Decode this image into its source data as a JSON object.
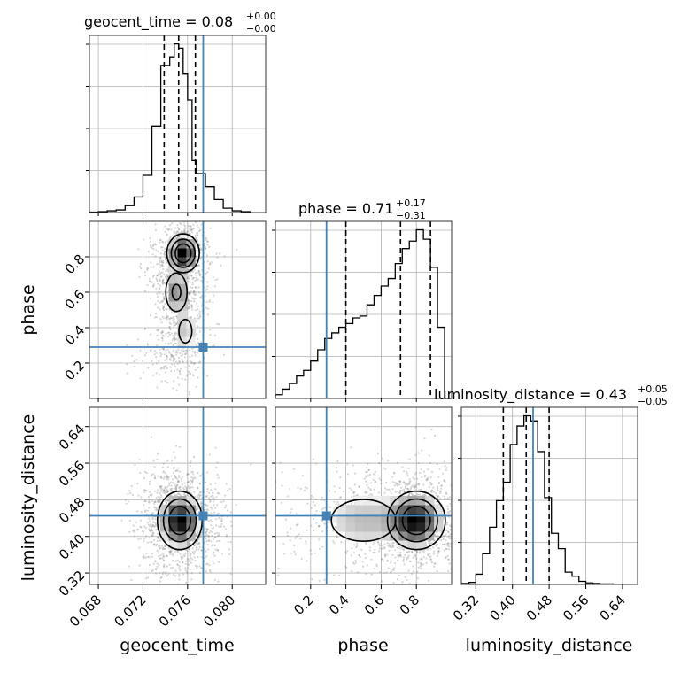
{
  "chart_data": {
    "type": "corner",
    "parameters": [
      "geocent_time",
      "phase",
      "luminosity_distance"
    ],
    "truth": {
      "geocent_time": 0.0774,
      "phase": 0.29,
      "luminosity_distance": 0.445
    },
    "truth_color": "#4682b4",
    "grid": true,
    "panels_1d": [
      {
        "parameter": "geocent_time",
        "title": {
          "main": "geocent_time = 0.08",
          "upper": "+0.00",
          "lower": "−0.00"
        },
        "xlim": [
          0.0672,
          0.083
        ],
        "bin_edges": [
          0.0672,
          0.068,
          0.0688,
          0.0696,
          0.0704,
          0.0712,
          0.072,
          0.0728,
          0.0736,
          0.0744,
          0.0748,
          0.0752,
          0.0756,
          0.076,
          0.0764,
          0.0768,
          0.0776,
          0.0784,
          0.0792,
          0.08,
          0.0808,
          0.0816
        ],
        "counts": [
          0.5,
          1,
          2,
          3,
          8,
          18,
          43,
          100,
          170,
          180,
          195,
          190,
          160,
          130,
          60,
          45,
          30,
          15,
          5,
          2,
          1
        ],
        "quantiles": [
          0.0739,
          0.0752,
          0.0767
        ]
      },
      {
        "parameter": "phase",
        "title": {
          "main": "phase = 0.71",
          "upper": "+0.17",
          "lower": "−0.31"
        },
        "xlim": [
          0.0,
          1.0
        ],
        "bin_edges": [
          0.0,
          0.04,
          0.08,
          0.12,
          0.16,
          0.2,
          0.24,
          0.28,
          0.32,
          0.36,
          0.4,
          0.44,
          0.48,
          0.52,
          0.56,
          0.6,
          0.64,
          0.68,
          0.72,
          0.76,
          0.8,
          0.84,
          0.88,
          0.92,
          0.96,
          1.0
        ],
        "counts": [
          2,
          5,
          8,
          12,
          15,
          20,
          26,
          32,
          35,
          38,
          40,
          43,
          44,
          50,
          55,
          60,
          64,
          72,
          80,
          84,
          90,
          85,
          70,
          38,
          0
        ],
        "quantiles": [
          0.4,
          0.71,
          0.88
        ]
      },
      {
        "parameter": "luminosity_distance",
        "title": {
          "main": "luminosity_distance = 0.43",
          "upper": "+0.05",
          "lower": "−0.05"
        },
        "xlim": [
          0.2885,
          0.673
        ],
        "bin_edges": [
          0.29,
          0.305,
          0.32,
          0.335,
          0.35,
          0.365,
          0.38,
          0.395,
          0.41,
          0.425,
          0.44,
          0.455,
          0.47,
          0.485,
          0.5,
          0.515,
          0.53,
          0.545,
          0.56,
          0.575,
          0.59,
          0.605,
          0.62
        ],
        "counts": [
          1,
          2,
          10,
          30,
          56,
          82,
          100,
          137,
          155,
          165,
          160,
          130,
          85,
          50,
          35,
          12,
          8,
          3,
          1.5,
          1,
          0.5,
          0.5
        ],
        "quantiles": [
          0.38,
          0.43,
          0.48
        ]
      }
    ],
    "panels_2d": [
      {
        "x": "geocent_time",
        "y": "phase",
        "xlim": [
          0.0672,
          0.083
        ],
        "ylim": [
          0.0,
          1.0
        ],
        "density_peaks": [
          {
            "x": 0.0756,
            "y": 0.82,
            "sx": 0.0008,
            "sy": 0.06,
            "w": 1.0
          },
          {
            "x": 0.075,
            "y": 0.6,
            "sx": 0.0007,
            "sy": 0.08,
            "w": 0.6
          },
          {
            "x": 0.0758,
            "y": 0.38,
            "sx": 0.0007,
            "sy": 0.08,
            "w": 0.4
          },
          {
            "x": 0.0745,
            "y": 0.22,
            "sx": 0.001,
            "sy": 0.05,
            "w": 0.2
          }
        ]
      },
      {
        "x": "geocent_time",
        "y": "luminosity_distance",
        "xlim": [
          0.0672,
          0.083
        ],
        "ylim": [
          0.295,
          0.682
        ],
        "density_peaks": [
          {
            "x": 0.0753,
            "y": 0.435,
            "sx": 0.0011,
            "sy": 0.035,
            "w": 1.0
          }
        ]
      },
      {
        "x": "phase",
        "y": "luminosity_distance",
        "xlim": [
          0.0,
          1.0
        ],
        "ylim": [
          0.295,
          0.682
        ],
        "density_peaks": [
          {
            "x": 0.8,
            "y": 0.435,
            "sx": 0.09,
            "sy": 0.035,
            "w": 1.0
          },
          {
            "x": 0.5,
            "y": 0.435,
            "sx": 0.18,
            "sy": 0.045,
            "w": 0.45
          }
        ]
      }
    ],
    "ticks": {
      "geocent_time": [
        0.068,
        0.072,
        0.076,
        0.08
      ],
      "geocent_time_labels": [
        "0.068",
        "0.072",
        "0.076",
        "0.080"
      ],
      "phase": [
        0.2,
        0.4,
        0.6,
        0.8
      ],
      "phase_labels": [
        "0.2",
        "0.4",
        "0.6",
        "0.8"
      ],
      "luminosity_distance": [
        0.32,
        0.4,
        0.48,
        0.56,
        0.64
      ],
      "luminosity_distance_labels": [
        "0.32",
        "0.40",
        "0.48",
        "0.56",
        "0.64"
      ]
    },
    "axis_labels": {
      "x": [
        "geocent_time",
        "phase",
        "luminosity_distance"
      ],
      "y": [
        "phase",
        "luminosity_distance"
      ]
    }
  }
}
